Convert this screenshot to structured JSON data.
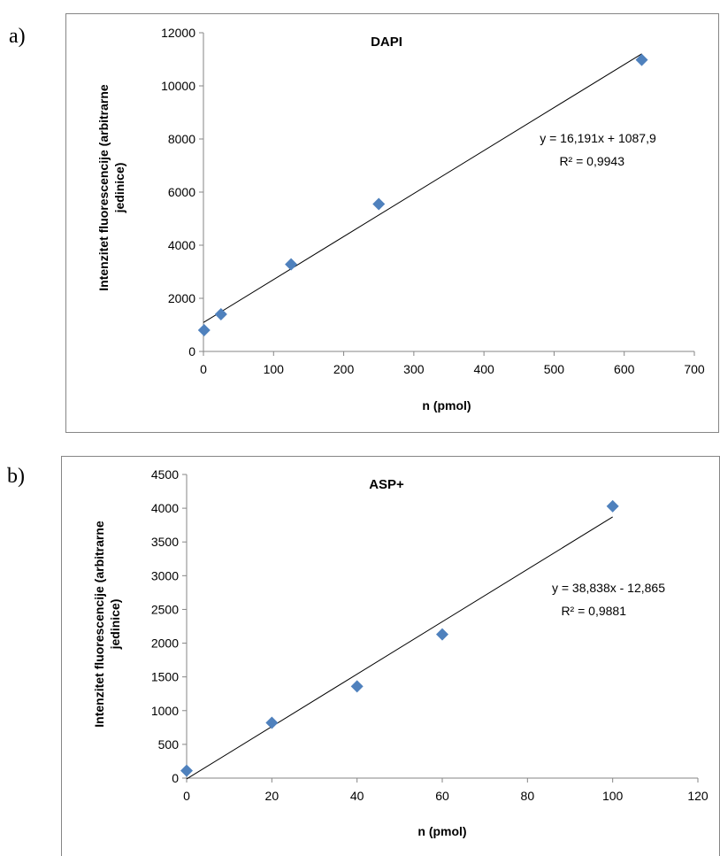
{
  "panels": [
    {
      "label": "a)"
    },
    {
      "label": "b)"
    }
  ],
  "chart_data": [
    {
      "type": "scatter",
      "title": "DAPI",
      "xlabel": "n (pmol)",
      "ylabel": "Intenzitet fluorescencije (arbitrarne jedinice)",
      "xlim": [
        0,
        700
      ],
      "ylim": [
        0,
        12000
      ],
      "xticks": [
        0,
        100,
        200,
        300,
        400,
        500,
        600,
        700
      ],
      "yticks": [
        0,
        2000,
        4000,
        6000,
        8000,
        10000,
        12000
      ],
      "grid": false,
      "series": [
        {
          "x": [
            1,
            25,
            125,
            250,
            625
          ],
          "y": [
            800,
            1400,
            3280,
            5550,
            10980
          ],
          "color": "#4F81BD",
          "marker": "diamond"
        }
      ],
      "trendline": {
        "slope": 16.191,
        "intercept": 1087.9,
        "x_range": [
          0,
          625
        ],
        "color": "#000000",
        "equation": "y = 16,191x + 1087,9",
        "r2": "R² = 0,9943"
      }
    },
    {
      "type": "scatter",
      "title": "ASP+",
      "xlabel": "n (pmol)",
      "ylabel": "Intenzitet fluorescencije (arbitrarne jedinice)",
      "xlim": [
        0,
        120
      ],
      "ylim": [
        0,
        4500
      ],
      "xticks": [
        0,
        20,
        40,
        60,
        80,
        100,
        120
      ],
      "yticks": [
        0,
        500,
        1000,
        1500,
        2000,
        2500,
        3000,
        3500,
        4000,
        4500
      ],
      "grid": false,
      "series": [
        {
          "x": [
            0,
            20,
            40,
            60,
            100
          ],
          "y": [
            110,
            820,
            1360,
            2130,
            4030
          ],
          "color": "#4F81BD",
          "marker": "diamond"
        }
      ],
      "trendline": {
        "slope": 38.838,
        "intercept": -12.865,
        "x_range": [
          0,
          100
        ],
        "color": "#000000",
        "equation": "y = 38,838x - 12,865",
        "r2": "R² = 0,9881"
      }
    }
  ]
}
